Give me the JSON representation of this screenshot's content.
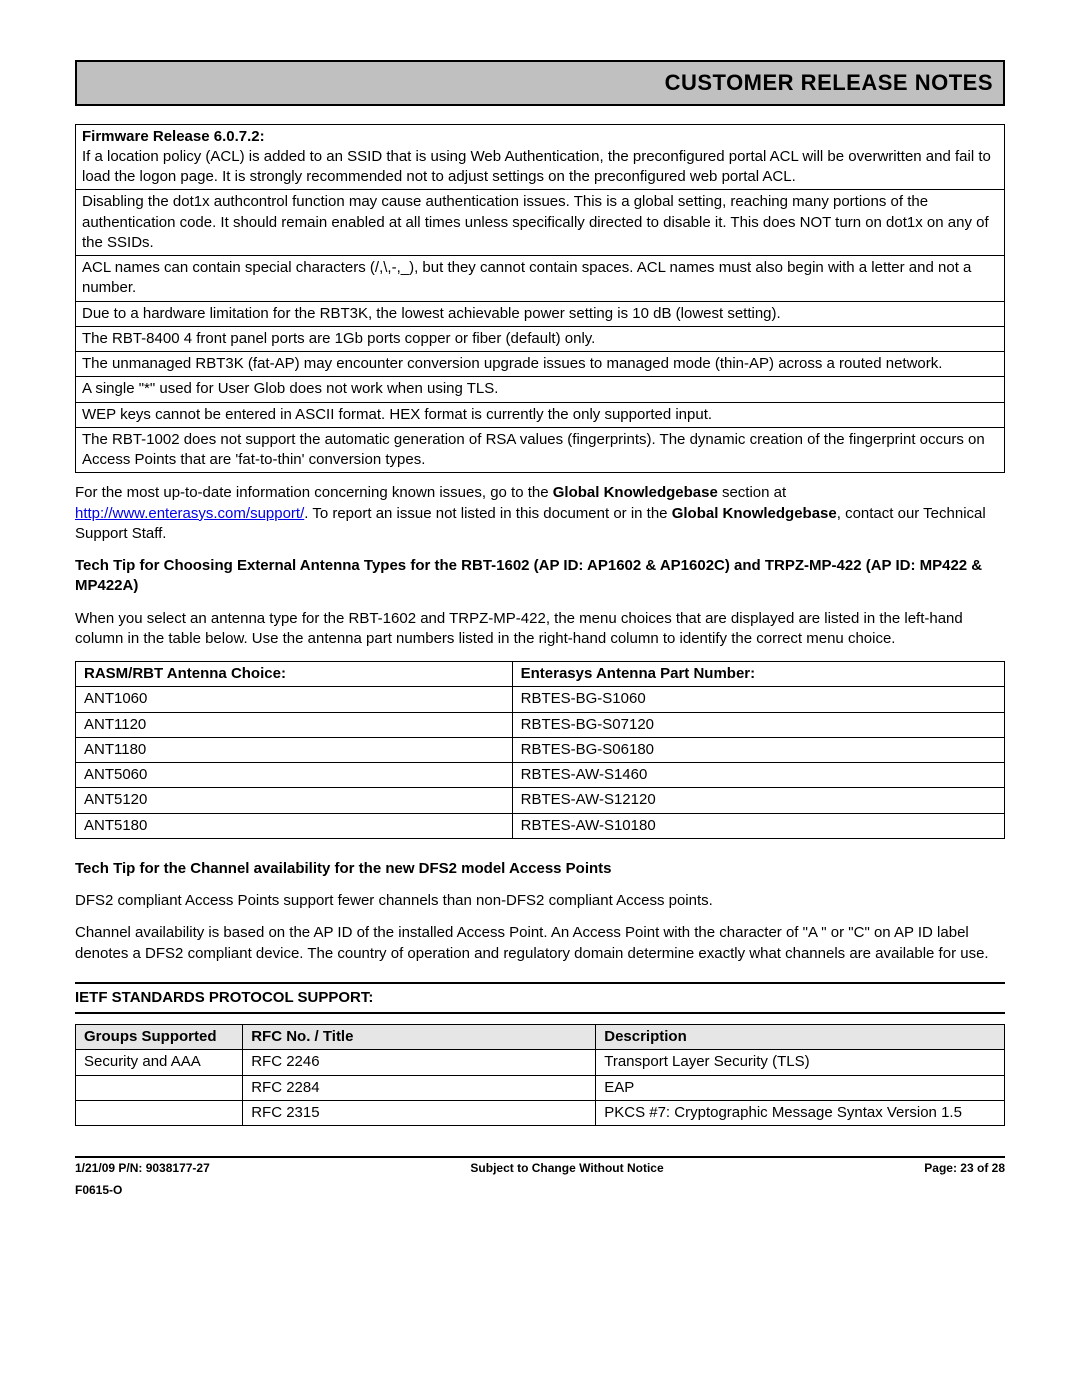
{
  "header": {
    "title": "CUSTOMER RELEASE NOTES"
  },
  "firmware_table": {
    "heading": "Firmware Release 6.0.7.2:",
    "rows": [
      "If a location policy (ACL) is added to an SSID that is using Web Authentication, the preconfigured portal ACL will be overwritten and fail to load the logon page. It is strongly recommended not to adjust settings on the preconfigured web portal ACL.",
      "Disabling the dot1x authcontrol function may cause authentication issues. This is a global setting, reaching many portions of the authentication code. It should remain enabled at all times unless specifically directed to disable it. This does NOT turn on dot1x on any of the SSIDs.",
      "ACL names can contain special characters (/,\\,-,_), but they cannot contain spaces. ACL names must also begin with a letter and not a number.",
      "Due to a hardware limitation for the RBT3K, the lowest achievable power setting is 10 dB (lowest setting).",
      "The RBT-8400 4 front panel ports are 1Gb ports copper or fiber (default) only.",
      "The unmanaged RBT3K (fat-AP) may encounter conversion upgrade issues to managed mode (thin-AP) across a routed network.",
      "A single \"*\" used for User Glob does not work when using TLS.",
      "WEP keys cannot be entered in ASCII format. HEX format is currently the only supported input.",
      "The RBT-1002 does not support the automatic generation of RSA values (fingerprints). The dynamic creation of the fingerprint occurs on Access Points that are 'fat-to-thin' conversion types."
    ]
  },
  "kb_para": {
    "p1a": "For the most up-to-date information concerning known issues, go to the ",
    "p1b": "Global Knowledgebase",
    "p1c": " section at ",
    "link": "http://www.enterasys.com/support/",
    "p1d": ". To report an issue not listed in this document or in the ",
    "p1e": "Global Knowledgebase",
    "p1f": ", contact our Technical Support Staff."
  },
  "techtip1_heading": "Tech Tip for Choosing External Antenna Types for the RBT-1602 (AP ID: AP1602 & AP1602C) and TRPZ-MP-422 (AP ID: MP422 & MP422A)",
  "techtip1_body": "When you select an antenna type for the RBT-1602 and TRPZ-MP-422, the menu choices that are displayed are listed in the left-hand column in the table below. Use the antenna part numbers listed in the right-hand column to identify the correct menu choice.",
  "antenna_table": {
    "headers": [
      "RASM/RBT Antenna Choice:",
      "Enterasys Antenna Part Number:"
    ],
    "rows": [
      [
        "ANT1060",
        "RBTES-BG-S1060"
      ],
      [
        "ANT1120",
        "RBTES-BG-S07120"
      ],
      [
        "ANT1180",
        "RBTES-BG-S06180"
      ],
      [
        "ANT5060",
        "RBTES-AW-S1460"
      ],
      [
        "ANT5120",
        "RBTES-AW-S12120"
      ],
      [
        "ANT5180",
        "RBTES-AW-S10180"
      ]
    ]
  },
  "techtip2_heading": "Tech Tip for the Channel availability for the new DFS2 model Access Points",
  "techtip2_p1": "DFS2 compliant Access Points support fewer channels than non-DFS2 compliant Access points.",
  "techtip2_p2": "Channel availability is based on the AP ID of the installed Access Point. An Access Point with the character of \"A \" or \"C\"  on AP ID label denotes a DFS2 compliant device. The country of operation and regulatory domain determine exactly what channels are available for use.",
  "ietf_heading": "IETF STANDARDS PROTOCOL SUPPORT:",
  "ietf_table": {
    "headers": [
      "Groups Supported",
      "RFC No. / Title",
      "Description"
    ],
    "rows": [
      [
        "Security and AAA",
        "RFC 2246",
        "Transport Layer Security (TLS)"
      ],
      [
        "",
        "RFC 2284",
        "EAP"
      ],
      [
        "",
        "RFC 2315",
        "PKCS #7: Cryptographic Message Syntax Version 1.5"
      ]
    ]
  },
  "footer": {
    "left": "1/21/09  P/N: 9038177-27",
    "center": "Subject to Change Without Notice",
    "right": "Page: 23 of 28",
    "code": "F0615-O"
  }
}
